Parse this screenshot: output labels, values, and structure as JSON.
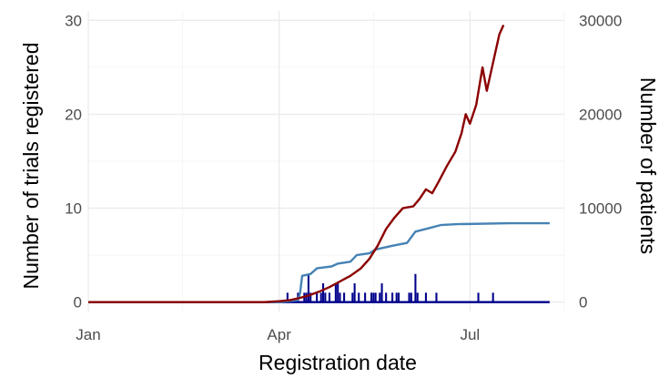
{
  "chart_data": {
    "type": "bar+line",
    "title": "",
    "xlabel": "Registration date",
    "ylabel": "Number of trials registered",
    "y2label": "Number of patients",
    "x_ticks": [
      "Jan",
      "Apr",
      "Jul"
    ],
    "y_ticks": [
      "0",
      "10",
      "20",
      "30"
    ],
    "y2_ticks": [
      "0",
      "10000",
      "20000",
      "30000"
    ],
    "xlim": [
      "2020-01-01",
      "2020-08-15"
    ],
    "ylim": [
      -1,
      31
    ],
    "y2lim": [
      -1000,
      31000
    ],
    "grid": true,
    "colors": {
      "bars": "#00008b",
      "cumulative_trials": "#4682b4",
      "cumulative_patients": "#8b0000"
    },
    "daily_trials": [
      {
        "date": "2020-04-01",
        "value": 0
      },
      {
        "date": "2020-04-05",
        "value": 1
      },
      {
        "date": "2020-04-10",
        "value": 1
      },
      {
        "date": "2020-04-13",
        "value": 1
      },
      {
        "date": "2020-04-14",
        "value": 1
      },
      {
        "date": "2020-04-15",
        "value": 3
      },
      {
        "date": "2020-04-16",
        "value": 1
      },
      {
        "date": "2020-04-19",
        "value": 1
      },
      {
        "date": "2020-04-21",
        "value": 1
      },
      {
        "date": "2020-04-22",
        "value": 2
      },
      {
        "date": "2020-04-23",
        "value": 1
      },
      {
        "date": "2020-04-25",
        "value": 1
      },
      {
        "date": "2020-04-28",
        "value": 2
      },
      {
        "date": "2020-04-29",
        "value": 2
      },
      {
        "date": "2020-04-30",
        "value": 1
      },
      {
        "date": "2020-05-02",
        "value": 1
      },
      {
        "date": "2020-05-06",
        "value": 1
      },
      {
        "date": "2020-05-07",
        "value": 2
      },
      {
        "date": "2020-05-09",
        "value": 1
      },
      {
        "date": "2020-05-12",
        "value": 1
      },
      {
        "date": "2020-05-15",
        "value": 1
      },
      {
        "date": "2020-05-16",
        "value": 1
      },
      {
        "date": "2020-05-17",
        "value": 1
      },
      {
        "date": "2020-05-19",
        "value": 1
      },
      {
        "date": "2020-05-20",
        "value": 2
      },
      {
        "date": "2020-05-22",
        "value": 1
      },
      {
        "date": "2020-05-25",
        "value": 1
      },
      {
        "date": "2020-05-27",
        "value": 1
      },
      {
        "date": "2020-05-28",
        "value": 1
      },
      {
        "date": "2020-06-02",
        "value": 1
      },
      {
        "date": "2020-06-03",
        "value": 1
      },
      {
        "date": "2020-06-05",
        "value": 3
      },
      {
        "date": "2020-06-06",
        "value": 1
      },
      {
        "date": "2020-06-10",
        "value": 1
      },
      {
        "date": "2020-06-15",
        "value": 1
      },
      {
        "date": "2020-07-05",
        "value": 1
      },
      {
        "date": "2020-07-12",
        "value": 1
      }
    ],
    "cumulative_trials": [
      {
        "date": "2020-01-01",
        "value": 0
      },
      {
        "date": "2020-04-01",
        "value": 0
      },
      {
        "date": "2020-04-10",
        "value": 0.2
      },
      {
        "date": "2020-04-11",
        "value": 1.0
      },
      {
        "date": "2020-04-12",
        "value": 2.8
      },
      {
        "date": "2020-04-16",
        "value": 3.0
      },
      {
        "date": "2020-04-19",
        "value": 3.6
      },
      {
        "date": "2020-04-26",
        "value": 3.8
      },
      {
        "date": "2020-04-29",
        "value": 4.1
      },
      {
        "date": "2020-05-05",
        "value": 4.3
      },
      {
        "date": "2020-05-08",
        "value": 5.0
      },
      {
        "date": "2020-05-14",
        "value": 5.2
      },
      {
        "date": "2020-05-17",
        "value": 5.6
      },
      {
        "date": "2020-05-25",
        "value": 6.0
      },
      {
        "date": "2020-06-01",
        "value": 6.3
      },
      {
        "date": "2020-06-05",
        "value": 7.5
      },
      {
        "date": "2020-06-12",
        "value": 7.9
      },
      {
        "date": "2020-06-17",
        "value": 8.2
      },
      {
        "date": "2020-06-25",
        "value": 8.3
      },
      {
        "date": "2020-07-20",
        "value": 8.4
      },
      {
        "date": "2020-08-08",
        "value": 8.4
      }
    ],
    "cumulative_patients": [
      {
        "date": "2020-01-01",
        "value": 0
      },
      {
        "date": "2020-03-25",
        "value": 0
      },
      {
        "date": "2020-04-01",
        "value": 100
      },
      {
        "date": "2020-04-06",
        "value": 200
      },
      {
        "date": "2020-04-10",
        "value": 400
      },
      {
        "date": "2020-04-15",
        "value": 700
      },
      {
        "date": "2020-04-20",
        "value": 1100
      },
      {
        "date": "2020-04-25",
        "value": 1600
      },
      {
        "date": "2020-04-30",
        "value": 2200
      },
      {
        "date": "2020-05-05",
        "value": 2800
      },
      {
        "date": "2020-05-10",
        "value": 3600
      },
      {
        "date": "2020-05-14",
        "value": 4600
      },
      {
        "date": "2020-05-18",
        "value": 6000
      },
      {
        "date": "2020-05-22",
        "value": 7800
      },
      {
        "date": "2020-05-26",
        "value": 9000
      },
      {
        "date": "2020-05-30",
        "value": 10000
      },
      {
        "date": "2020-06-04",
        "value": 10200
      },
      {
        "date": "2020-06-07",
        "value": 11000
      },
      {
        "date": "2020-06-10",
        "value": 12000
      },
      {
        "date": "2020-06-13",
        "value": 11600
      },
      {
        "date": "2020-06-16",
        "value": 12800
      },
      {
        "date": "2020-06-20",
        "value": 14500
      },
      {
        "date": "2020-06-24",
        "value": 16000
      },
      {
        "date": "2020-06-27",
        "value": 18000
      },
      {
        "date": "2020-06-29",
        "value": 20000
      },
      {
        "date": "2020-07-01",
        "value": 19000
      },
      {
        "date": "2020-07-04",
        "value": 21000
      },
      {
        "date": "2020-07-07",
        "value": 25000
      },
      {
        "date": "2020-07-09",
        "value": 22500
      },
      {
        "date": "2020-07-12",
        "value": 25500
      },
      {
        "date": "2020-07-15",
        "value": 28500
      },
      {
        "date": "2020-07-17",
        "value": 29500
      }
    ]
  }
}
